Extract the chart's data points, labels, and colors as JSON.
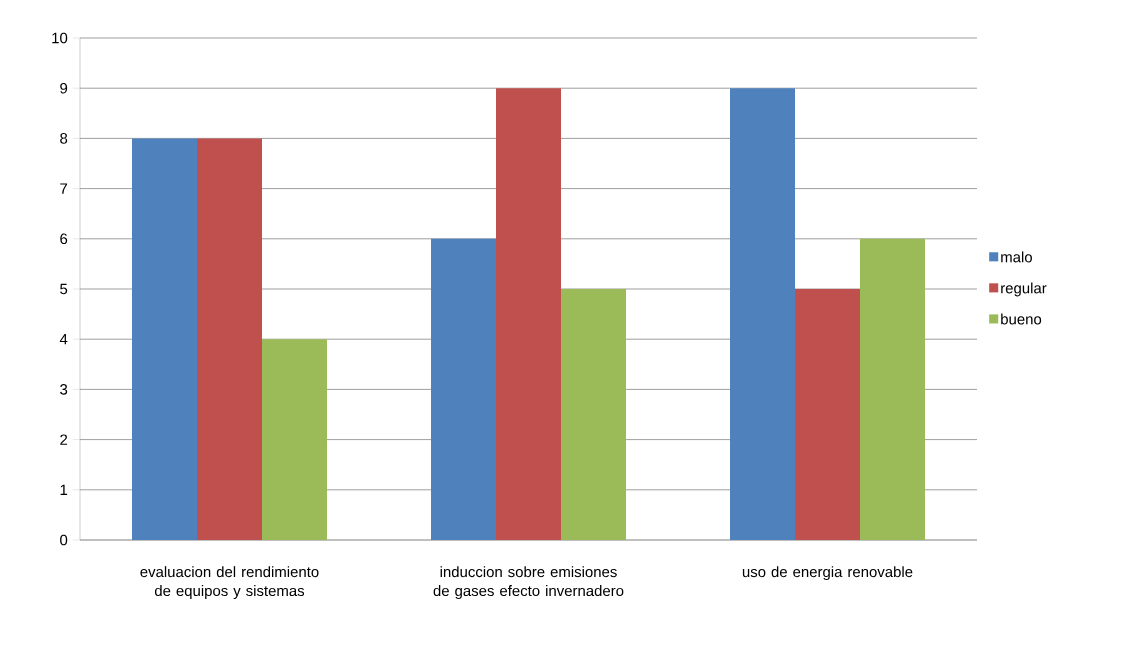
{
  "chart_data": {
    "type": "bar",
    "categories": [
      "evaluacion del rendimiento de equipos y sistemas",
      "induccion sobre emisiones de gases efecto invernadero",
      "uso de energia renovable"
    ],
    "series": [
      {
        "name": "malo",
        "color": "#4f81bd",
        "values": [
          8,
          6,
          9
        ]
      },
      {
        "name": "regular",
        "color": "#c0504d",
        "values": [
          8,
          9,
          5
        ]
      },
      {
        "name": "bueno",
        "color": "#9bbb59",
        "values": [
          4,
          5,
          6
        ]
      }
    ],
    "ylim": [
      0,
      10
    ],
    "yticks": [
      0,
      1,
      2,
      3,
      4,
      5,
      6,
      7,
      8,
      9,
      10
    ],
    "grid": "y",
    "legend": "right"
  }
}
